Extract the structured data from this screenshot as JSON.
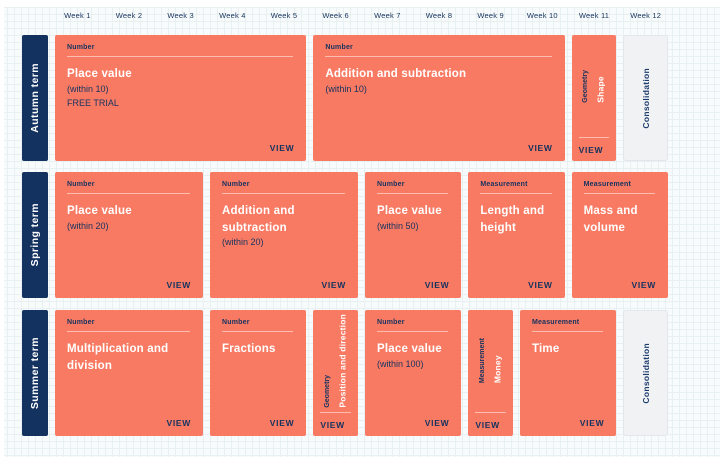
{
  "weeks": [
    "Week 1",
    "Week 2",
    "Week 3",
    "Week 4",
    "Week 5",
    "Week 6",
    "Week 7",
    "Week 8",
    "Week 9",
    "Week 10",
    "Week 11",
    "Week 12"
  ],
  "view_label": "VIEW",
  "terms": [
    {
      "label": "Autumn term",
      "blocks": [
        {
          "category": "Number",
          "title": "Place value",
          "subtitle": "(within 10)",
          "note": "FREE TRIAL"
        },
        {
          "category": "Number",
          "title": "Addition and subtraction",
          "subtitle": "(within 10)"
        },
        {
          "category": "Geometry",
          "title": "Shape"
        },
        {
          "label": "Consolidation"
        }
      ]
    },
    {
      "label": "Spring term",
      "blocks": [
        {
          "category": "Number",
          "title": "Place value",
          "subtitle": "(within 20)"
        },
        {
          "category": "Number",
          "title": "Addition and subtraction",
          "subtitle": "(within 20)"
        },
        {
          "category": "Number",
          "title": "Place value",
          "subtitle": "(within 50)"
        },
        {
          "category": "Measurement",
          "title": "Length and height"
        },
        {
          "category": "Measurement",
          "title": "Mass and volume"
        }
      ]
    },
    {
      "label": "Summer term",
      "blocks": [
        {
          "category": "Number",
          "title": "Multiplication and division"
        },
        {
          "category": "Number",
          "title": "Fractions"
        },
        {
          "category": "Geometry",
          "title": "Position and direction"
        },
        {
          "category": "Number",
          "title": "Place value",
          "subtitle": "(within 100)"
        },
        {
          "category": "Measurement",
          "title": "Money"
        },
        {
          "category": "Measurement",
          "title": "Time"
        },
        {
          "label": "Consolidation"
        }
      ]
    }
  ],
  "colors": {
    "card_salmon": "#f87a63",
    "navy": "#14325f",
    "consolidation_bg": "#f0f2f4",
    "page_background": "#f8fbfb"
  }
}
